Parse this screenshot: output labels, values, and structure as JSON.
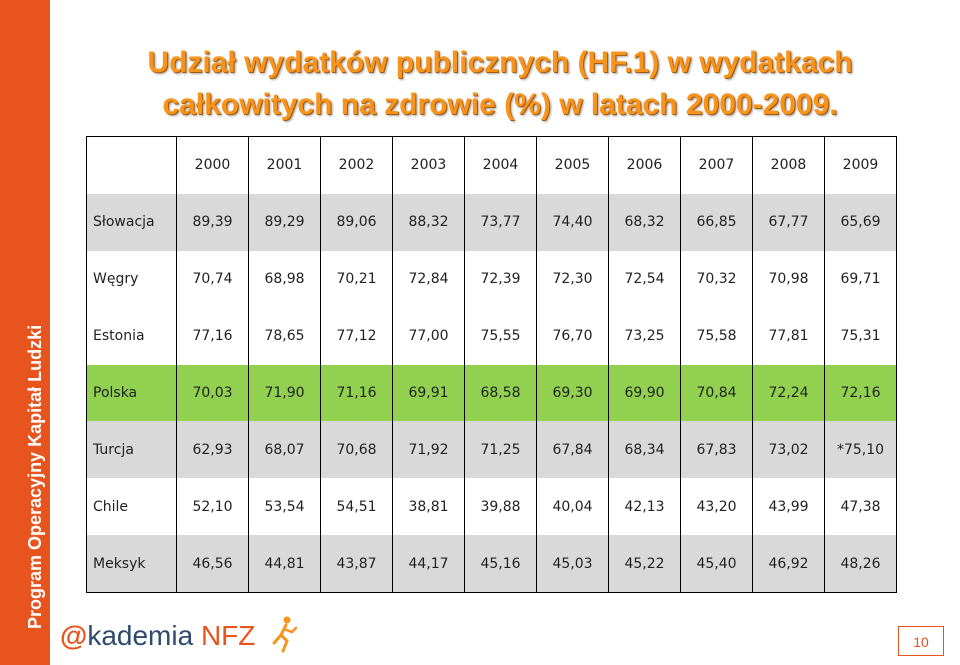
{
  "sidebar": {
    "text": "Program Operacyjny Kapitał Ludzki"
  },
  "slide": {
    "title_line1": "Udział wydatków publicznych (HF.1) w wydatkach",
    "title_line2": "całkowitych na zdrowie (%) w latach 2000-2009.",
    "page_number": "10"
  },
  "logo": {
    "at": "@",
    "kademia": "kademia",
    "nfz": "NFZ"
  },
  "colors": {
    "accent": "#e8541e",
    "title": "#f7941d",
    "highlight": "#92d050",
    "gray": "#d9d9d9"
  },
  "table": {
    "years": [
      "2000",
      "2001",
      "2002",
      "2003",
      "2004",
      "2005",
      "2006",
      "2007",
      "2008",
      "2009"
    ],
    "rows": [
      {
        "country": "Słowacja",
        "values": [
          "89,39",
          "89,29",
          "89,06",
          "88,32",
          "73,77",
          "74,40",
          "68,32",
          "66,85",
          "67,77",
          "65,69"
        ]
      },
      {
        "country": "Węgry",
        "values": [
          "70,74",
          "68,98",
          "70,21",
          "72,84",
          "72,39",
          "72,30",
          "72,54",
          "70,32",
          "70,98",
          "69,71"
        ]
      },
      {
        "country": "Estonia",
        "values": [
          "77,16",
          "78,65",
          "77,12",
          "77,00",
          "75,55",
          "76,70",
          "73,25",
          "75,58",
          "77,81",
          "75,31"
        ]
      },
      {
        "country": "Polska",
        "values": [
          "70,03",
          "71,90",
          "71,16",
          "69,91",
          "68,58",
          "69,30",
          "69,90",
          "70,84",
          "72,24",
          "72,16"
        ]
      },
      {
        "country": "Turcja",
        "values": [
          "62,93",
          "68,07",
          "70,68",
          "71,92",
          "71,25",
          "67,84",
          "68,34",
          "67,83",
          "73,02",
          "*75,10"
        ]
      },
      {
        "country": "Chile",
        "values": [
          "52,10",
          "53,54",
          "54,51",
          "38,81",
          "39,88",
          "40,04",
          "42,13",
          "43,20",
          "43,99",
          "47,38"
        ]
      },
      {
        "country": "Meksyk",
        "values": [
          "46,56",
          "44,81",
          "43,87",
          "44,17",
          "45,16",
          "45,03",
          "45,22",
          "45,40",
          "46,92",
          "48,26"
        ]
      }
    ]
  }
}
